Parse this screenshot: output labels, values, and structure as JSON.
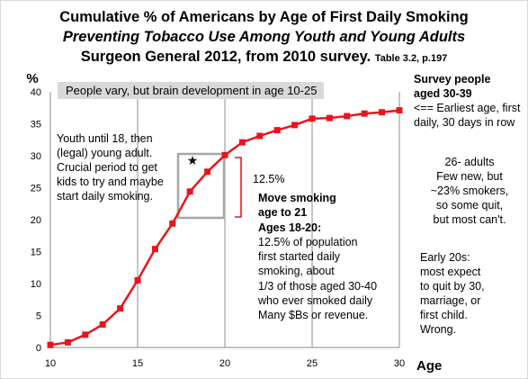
{
  "title": {
    "line1": "Cumulative % of Americans by  Age of First Daily Smoking",
    "line2": "Preventing Tobacco Use Among Youth and Young Adults",
    "line3": "Surgeon General 2012, from 2010 survey.",
    "line3_ref": "Table 3.2,  p.197"
  },
  "chart_data": {
    "type": "line",
    "title": "Cumulative % of Americans by  Age of First Daily Smoking",
    "ylabel": "%",
    "xlabel": "Age",
    "xlim": [
      10,
      30
    ],
    "ylim": [
      0,
      40
    ],
    "x_ticks": [
      "10",
      "15",
      "20",
      "25",
      "30"
    ],
    "y_ticks": [
      "0",
      "5",
      "10",
      "15",
      "20",
      "25",
      "30",
      "35",
      "40"
    ],
    "grid": "vertical lines at x = 15, 20, 25, 30",
    "legend": "none",
    "series_color": "#e8151b",
    "x": [
      10,
      11,
      12,
      13,
      14,
      15,
      16,
      17,
      18,
      19,
      20,
      21,
      22,
      23,
      24,
      25,
      26,
      27,
      28,
      29,
      30
    ],
    "values": [
      0.4,
      0.8,
      2.0,
      3.6,
      6.1,
      10.5,
      15.4,
      19.4,
      24.4,
      27.5,
      30.1,
      32.1,
      33.1,
      34.0,
      34.8,
      35.8,
      35.9,
      36.2,
      36.6,
      36.8,
      37.1
    ]
  },
  "annotations": {
    "top_box": "People vary, but brain development  in age 10-25",
    "youth_note": [
      "Youth until 18, then",
      "(legal) young  adult.",
      "Crucial period to get",
      "kids to try and maybe",
      "start daily smoking."
    ],
    "bracket_label": "12.5%",
    "star": "★",
    "move_note_bold": [
      "Move smoking",
      "age to 21",
      "Ages 18-20:"
    ],
    "move_note_plain": [
      "12.5% of population",
      "first started daily",
      "smoking, about",
      "1/3 of those aged 30-40",
      "who ever smoked daily",
      "Many $Bs or revenue."
    ],
    "survey_bold": [
      "Survey people",
      "aged 30-39"
    ],
    "survey_plain": [
      "<== Earliest age, first",
      "daily, 30 days in row"
    ],
    "adults_note": [
      "26- adults",
      "Few  new, but",
      "~23% smokers,",
      "so some quit,",
      "but most can't."
    ],
    "early_note": [
      "Early 20s:",
      "most expect",
      "to quit by 30,",
      "marriage, or",
      "first child.",
      "Wrong."
    ]
  }
}
